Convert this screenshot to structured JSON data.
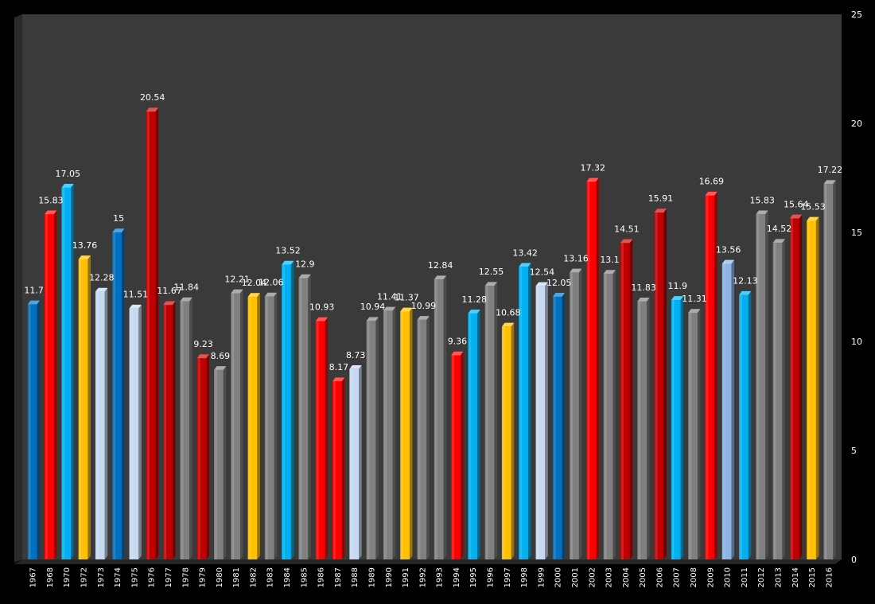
{
  "chart_data": {
    "type": "bar",
    "title": "",
    "xlabel": "",
    "ylabel": "",
    "ylim": [
      0,
      25
    ],
    "y_ticks": [
      0,
      5,
      10,
      15,
      20,
      25
    ],
    "y_axis_side": "right",
    "grid": false,
    "legend": "none",
    "style": "3d-column",
    "background": "#3a3a3a",
    "categories": [
      "1967",
      "1968",
      "1970",
      "1972",
      "1973",
      "1974",
      "1975",
      "1976",
      "1977",
      "1978",
      "1979",
      "1980",
      "1981",
      "1982",
      "1983",
      "1984",
      "1985",
      "1986",
      "1987",
      "1988",
      "1989",
      "1990",
      "1991",
      "1992",
      "1993",
      "1994",
      "1995",
      "1996",
      "1997",
      "1998",
      "1999",
      "2000",
      "2001",
      "2002",
      "2003",
      "2004",
      "2005",
      "2006",
      "2007",
      "2008",
      "2009",
      "2010",
      "2011",
      "2012",
      "2013",
      "2014",
      "2015",
      "2016"
    ],
    "values": [
      11.7,
      15.83,
      17.05,
      13.76,
      12.28,
      15,
      11.51,
      20.54,
      11.67,
      11.84,
      9.23,
      8.69,
      12.21,
      12.04,
      12.06,
      13.52,
      12.9,
      10.93,
      8.17,
      8.73,
      10.94,
      11.41,
      11.37,
      10.99,
      12.84,
      9.36,
      11.28,
      12.55,
      10.68,
      13.42,
      12.54,
      12.05,
      13.16,
      17.32,
      13.1,
      14.51,
      11.83,
      15.91,
      11.9,
      11.31,
      16.69,
      13.56,
      12.13,
      15.83,
      14.52,
      15.64,
      15.53,
      17.22
    ],
    "bar_colors": [
      "#0070c0",
      "#ff0000",
      "#00b0f0",
      "#ffc000",
      "#c6d9f1",
      "#0070c0",
      "#c6d9f1",
      "#c00000",
      "#c00000",
      "#808080",
      "#c00000",
      "#808080",
      "#808080",
      "#ffc000",
      "#808080",
      "#00b0f0",
      "#808080",
      "#ff0000",
      "#ff0000",
      "#c6d9f1",
      "#808080",
      "#808080",
      "#ffc000",
      "#808080",
      "#808080",
      "#ff0000",
      "#00b0f0",
      "#808080",
      "#ffc000",
      "#00b0f0",
      "#c6d9f1",
      "#0070c0",
      "#808080",
      "#ff0000",
      "#808080",
      "#c00000",
      "#808080",
      "#c00000",
      "#00b0f0",
      "#808080",
      "#ff0000",
      "#8db4e2",
      "#00b0f0",
      "#808080",
      "#808080",
      "#c00000",
      "#ffc000",
      "#808080"
    ]
  }
}
